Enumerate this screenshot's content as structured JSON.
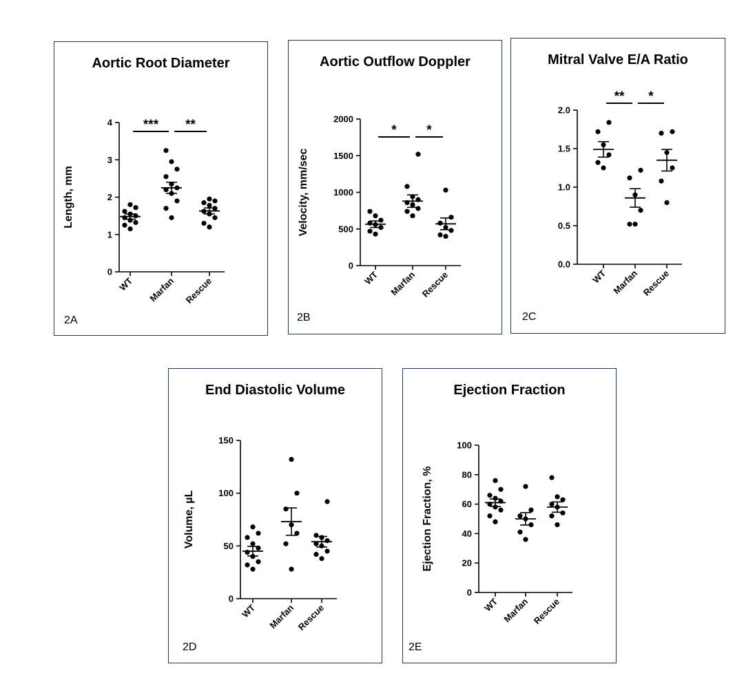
{
  "chart_data": [
    {
      "id": "2A",
      "type": "scatter",
      "title": "Aortic Root Diameter",
      "panel_label": "2A",
      "ylabel": "Length, mm",
      "ylim": [
        0,
        4
      ],
      "yticks": [
        0,
        1,
        2,
        3,
        4
      ],
      "categories": [
        "WT",
        "Marfan",
        "Rescue"
      ],
      "groups": [
        {
          "name": "WT",
          "points": [
            1.15,
            1.25,
            1.32,
            1.38,
            1.45,
            1.5,
            1.55,
            1.62,
            1.72,
            1.8
          ],
          "mean": 1.48,
          "sem": 0.07
        },
        {
          "name": "Marfan",
          "points": [
            1.45,
            1.7,
            1.9,
            2.1,
            2.2,
            2.25,
            2.35,
            2.55,
            2.75,
            2.95,
            3.25
          ],
          "mean": 2.25,
          "sem": 0.15
        },
        {
          "name": "Rescue",
          "points": [
            1.2,
            1.3,
            1.45,
            1.55,
            1.62,
            1.7,
            1.78,
            1.85,
            1.9,
            1.95
          ],
          "mean": 1.63,
          "sem": 0.08
        }
      ],
      "significance": [
        {
          "from": 0,
          "to": 1,
          "label": "***"
        },
        {
          "from": 1,
          "to": 2,
          "label": "**"
        }
      ]
    },
    {
      "id": "2B",
      "type": "scatter",
      "title": "Aortic Outflow Doppler",
      "panel_label": "2B",
      "ylabel": "Velocity, mm/sec",
      "ylim": [
        0,
        2000
      ],
      "yticks": [
        0,
        500,
        1000,
        1500,
        2000
      ],
      "categories": [
        "WT",
        "Marfan",
        "Rescue"
      ],
      "groups": [
        {
          "name": "WT",
          "points": [
            430,
            470,
            520,
            560,
            580,
            620,
            680,
            740
          ],
          "mean": 565,
          "sem": 45
        },
        {
          "name": "Marfan",
          "points": [
            680,
            740,
            780,
            830,
            860,
            900,
            940,
            1080,
            1520
          ],
          "mean": 880,
          "sem": 85
        },
        {
          "name": "Rescue",
          "points": [
            400,
            420,
            480,
            520,
            580,
            660,
            1030
          ],
          "mean": 570,
          "sem": 80
        }
      ],
      "significance": [
        {
          "from": 0,
          "to": 1,
          "label": "*"
        },
        {
          "from": 1,
          "to": 2,
          "label": "*"
        }
      ]
    },
    {
      "id": "2C",
      "type": "scatter",
      "title": "Mitral Valve E/A Ratio",
      "panel_label": "2C",
      "ylabel": "",
      "ylim": [
        0,
        2
      ],
      "yticks": [
        0,
        0.5,
        1,
        1.5,
        2
      ],
      "yticklabels": [
        "0.0",
        "0.5",
        "1.0",
        "1.5",
        "2.0"
      ],
      "categories": [
        "WT",
        "Marfan",
        "Rescue"
      ],
      "groups": [
        {
          "name": "WT",
          "points": [
            1.25,
            1.32,
            1.42,
            1.55,
            1.72,
            1.84
          ],
          "mean": 1.49,
          "sem": 0.1
        },
        {
          "name": "Marfan",
          "points": [
            0.52,
            0.52,
            0.7,
            0.9,
            1.12,
            1.22
          ],
          "mean": 0.86,
          "sem": 0.12
        },
        {
          "name": "Rescue",
          "points": [
            0.8,
            1.08,
            1.25,
            1.45,
            1.7,
            1.72
          ],
          "mean": 1.35,
          "sem": 0.14
        }
      ],
      "significance": [
        {
          "from": 0,
          "to": 1,
          "label": "**"
        },
        {
          "from": 1,
          "to": 2,
          "label": "*"
        }
      ]
    },
    {
      "id": "2D",
      "type": "scatter",
      "title": "End Diastolic Volume",
      "panel_label": "2D",
      "ylabel": "Volume, µL",
      "ylim": [
        0,
        150
      ],
      "yticks": [
        0,
        50,
        100,
        150
      ],
      "categories": [
        "WT",
        "Marfan",
        "Rescue"
      ],
      "groups": [
        {
          "name": "WT",
          "points": [
            28,
            32,
            35,
            40,
            44,
            48,
            52,
            58,
            62,
            68
          ],
          "mean": 45,
          "sem": 4.5
        },
        {
          "name": "Marfan",
          "points": [
            28,
            52,
            62,
            70,
            85,
            100,
            132
          ],
          "mean": 73,
          "sem": 13
        },
        {
          "name": "Rescue",
          "points": [
            38,
            42,
            45,
            50,
            52,
            55,
            58,
            60,
            92
          ],
          "mean": 54,
          "sem": 5
        }
      ],
      "significance": []
    },
    {
      "id": "2E",
      "type": "scatter",
      "title": "Ejection Fraction",
      "panel_label": "2E",
      "ylabel": "Ejection Fraction, %",
      "ylim": [
        0,
        100
      ],
      "yticks": [
        0,
        20,
        40,
        60,
        80,
        100
      ],
      "categories": [
        "WT",
        "Marfan",
        "Rescue"
      ],
      "groups": [
        {
          "name": "WT",
          "points": [
            48,
            52,
            56,
            58,
            60,
            62,
            64,
            66,
            70,
            76
          ],
          "mean": 61,
          "sem": 2.5
        },
        {
          "name": "Marfan",
          "points": [
            36,
            41,
            46,
            50,
            52,
            56,
            72
          ],
          "mean": 50,
          "sem": 4.2
        },
        {
          "name": "Rescue",
          "points": [
            46,
            52,
            54,
            58,
            60,
            63,
            65,
            78
          ],
          "mean": 58,
          "sem": 3.5
        }
      ],
      "significance": []
    }
  ]
}
